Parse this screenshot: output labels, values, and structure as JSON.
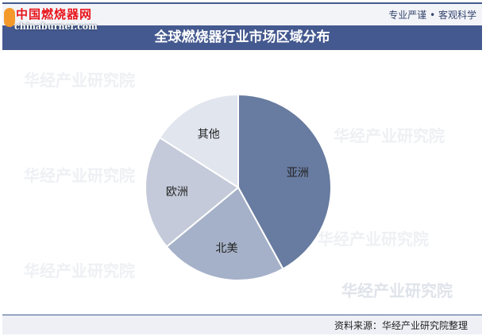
{
  "header": {
    "logo_cn": "中国燃烧器网",
    "logo_en": "chinaburner.com",
    "slogan": "专业严谨 • 客观科学"
  },
  "footer": {
    "source": "资料来源：华经产业研究院整理"
  },
  "watermark": "华经产业研究院",
  "chart_data": {
    "type": "pie",
    "title": "全球燃烧器行业市场区域分布",
    "categories": [
      "亚洲",
      "北美",
      "欧洲",
      "其他"
    ],
    "values": [
      42,
      22,
      20,
      16
    ],
    "colors": [
      "#687ba0",
      "#a5b1c8",
      "#c4cad9",
      "#e1e5ee"
    ],
    "start": "12 o'clock, clockwise"
  }
}
